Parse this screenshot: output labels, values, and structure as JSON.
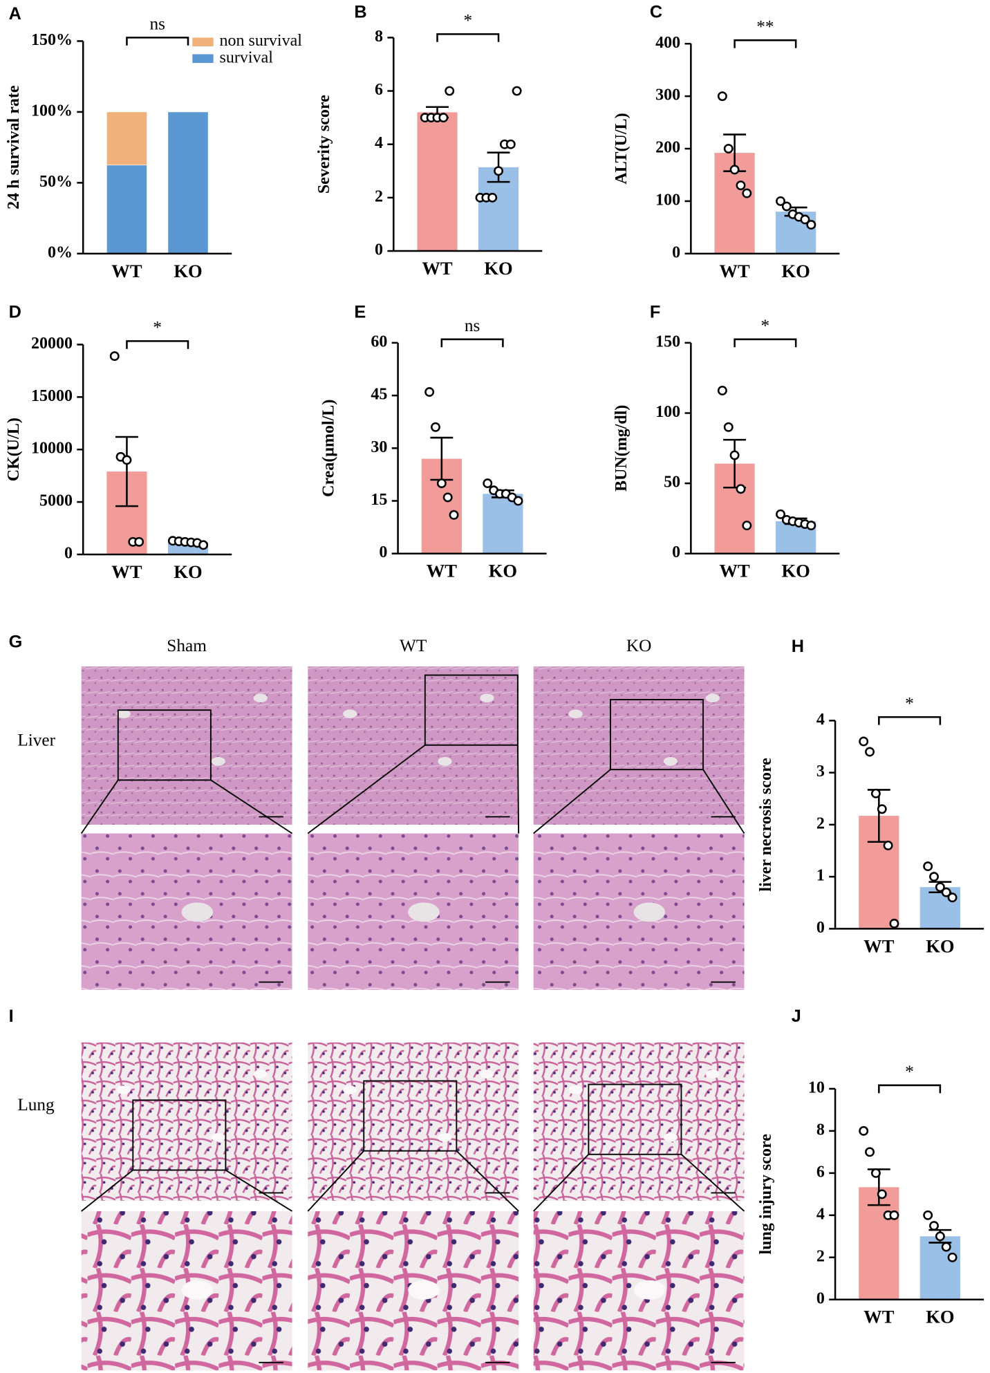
{
  "chart_data": [
    {
      "type": "stacked_bar",
      "label": "A",
      "ylabel": "24 h survival rate",
      "categories": [
        "WT",
        "KO"
      ],
      "series": [
        {
          "name": "survival",
          "color": "#5b97d1",
          "values": [
            62.5,
            100
          ]
        },
        {
          "name": "non survival",
          "color": "#f0b27a",
          "values": [
            37.5,
            0
          ]
        }
      ],
      "ylim": [
        0,
        150
      ],
      "yticks": [
        {
          "value": 0,
          "label": "0%"
        },
        {
          "value": 50,
          "label": "50%"
        },
        {
          "value": 100,
          "label": "100%"
        },
        {
          "value": 150,
          "label": "150%"
        }
      ],
      "significance": "ns"
    },
    {
      "type": "bar",
      "label": "B",
      "ylabel": "Severity score",
      "categories": [
        "WT",
        "KO"
      ],
      "colors": [
        "#f19c99",
        "#9bc0e8"
      ],
      "values": [
        5.2,
        3.14
      ],
      "errors": [
        0.2,
        0.55
      ],
      "points": [
        [
          5,
          5,
          5,
          5,
          6
        ],
        [
          2,
          2,
          2,
          3,
          4,
          4,
          6
        ]
      ],
      "ylim": [
        0,
        8
      ],
      "yticks": [
        0,
        2,
        4,
        6,
        8
      ],
      "significance": "*"
    },
    {
      "type": "bar",
      "label": "C",
      "ylabel": "ALT(U/L)",
      "categories": [
        "WT",
        "KO"
      ],
      "colors": [
        "#f19c99",
        "#9bc0e8"
      ],
      "values": [
        192,
        80
      ],
      "errors": [
        35,
        8
      ],
      "points": [
        [
          300,
          200,
          160,
          130,
          115
        ],
        [
          100,
          90,
          75,
          70,
          65,
          55
        ]
      ],
      "ylim": [
        0,
        400
      ],
      "yticks": [
        0,
        100,
        200,
        300,
        400
      ],
      "significance": "**"
    },
    {
      "type": "bar",
      "label": "D",
      "ylabel": "CK(U/L)",
      "categories": [
        "WT",
        "KO"
      ],
      "colors": [
        "#f19c99",
        "#9bc0e8"
      ],
      "values": [
        7900,
        1150
      ],
      "errors": [
        3300,
        150
      ],
      "points": [
        [
          18900,
          9300,
          9000,
          1200,
          1200
        ],
        [
          1300,
          1250,
          1200,
          1150,
          1100,
          900
        ]
      ],
      "ylim": [
        0,
        20000
      ],
      "yticks": [
        0,
        5000,
        10000,
        15000,
        20000
      ],
      "significance": "*"
    },
    {
      "type": "bar",
      "label": "E",
      "ylabel": "Crea(μmol/L)",
      "categories": [
        "WT",
        "KO"
      ],
      "colors": [
        "#f19c99",
        "#9bc0e8"
      ],
      "values": [
        27,
        17
      ],
      "errors": [
        6,
        1
      ],
      "points": [
        [
          46,
          36,
          20,
          16,
          11
        ],
        [
          20,
          18,
          17,
          17,
          16,
          15
        ]
      ],
      "ylim": [
        0,
        60
      ],
      "yticks": [
        0,
        15,
        30,
        45,
        60
      ],
      "significance": "ns"
    },
    {
      "type": "bar",
      "label": "F",
      "ylabel": "BUN(mg/dl)",
      "categories": [
        "WT",
        "KO"
      ],
      "colors": [
        "#f19c99",
        "#9bc0e8"
      ],
      "values": [
        64,
        23
      ],
      "errors": [
        17,
        2
      ],
      "points": [
        [
          116,
          90,
          70,
          46,
          20
        ],
        [
          28,
          24,
          23,
          22,
          21,
          20
        ]
      ],
      "ylim": [
        0,
        150
      ],
      "yticks": [
        0,
        50,
        100,
        150
      ],
      "significance": "*"
    },
    {
      "type": "bar",
      "label": "H",
      "ylabel": "liver necrosis score",
      "categories": [
        "WT",
        "KO"
      ],
      "colors": [
        "#f19c99",
        "#9bc0e8"
      ],
      "values": [
        2.17,
        0.8
      ],
      "errors": [
        0.5,
        0.1
      ],
      "points": [
        [
          3.6,
          3.4,
          2.6,
          2.3,
          1.6,
          0.1
        ],
        [
          1.2,
          1.0,
          0.8,
          0.7,
          0.6
        ]
      ],
      "ylim": [
        0,
        4
      ],
      "yticks": [
        0,
        1,
        2,
        3,
        4
      ],
      "significance": "*"
    },
    {
      "type": "bar",
      "label": "J",
      "ylabel": "lung injury score",
      "categories": [
        "WT",
        "KO"
      ],
      "colors": [
        "#f19c99",
        "#9bc0e8"
      ],
      "values": [
        5.33,
        3.0
      ],
      "errors": [
        0.85,
        0.3
      ],
      "points": [
        [
          8,
          7,
          6,
          5,
          4,
          4
        ],
        [
          4,
          3.5,
          3,
          2.5,
          2
        ]
      ],
      "ylim": [
        0,
        10
      ],
      "yticks": [
        0,
        2,
        4,
        6,
        8,
        10
      ],
      "significance": "*"
    }
  ],
  "histology": {
    "panels": [
      "G",
      "I"
    ],
    "columns": [
      "Sham",
      "WT",
      "KO"
    ],
    "rows": [
      "Liver",
      "Lung"
    ]
  }
}
